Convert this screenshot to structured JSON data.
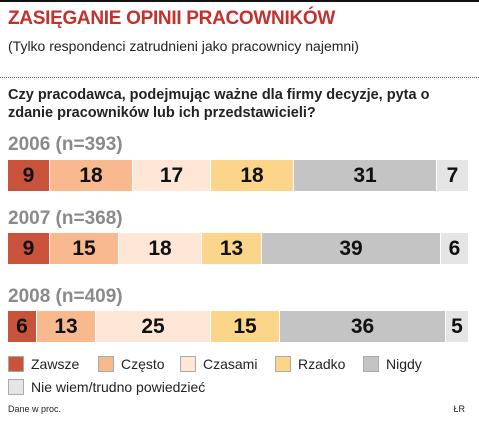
{
  "title": "ZASIĘGANIE OPINII PRACOWNIKÓW",
  "subtitle": "(Tylko respondenci zatrudnieni jako pracownicy najemni)",
  "question": "Czy pracodawca, podejmując ważne dla firmy decyzje, pyta o zdanie pracowników lub ich przedstawicieli?",
  "footer": {
    "source_note": "Dane w proc.",
    "credit": "ŁR"
  },
  "chart_data": {
    "type": "bar",
    "orientation": "horizontal-stacked-100",
    "unit": "%",
    "groups": [
      {
        "label": "2006 (n=393)",
        "values": [
          9,
          18,
          17,
          18,
          31,
          7
        ]
      },
      {
        "label": "2007 (n=368)",
        "values": [
          9,
          15,
          18,
          13,
          39,
          6
        ]
      },
      {
        "label": "2008 (n=409)",
        "values": [
          6,
          13,
          25,
          15,
          36,
          5
        ]
      }
    ],
    "series": [
      {
        "name": "Zawsze",
        "color": "#c8533a"
      },
      {
        "name": "Często",
        "color": "#f7b98d"
      },
      {
        "name": "Czasami",
        "color": "#fde6d6"
      },
      {
        "name": "Rzadko",
        "color": "#fbd68a"
      },
      {
        "name": "Nigdy",
        "color": "#c4c4c4"
      },
      {
        "name": "Nie wiem/trudno powiedzieć",
        "color": "#e5e5e5"
      }
    ],
    "legend_placement": "bottom"
  }
}
